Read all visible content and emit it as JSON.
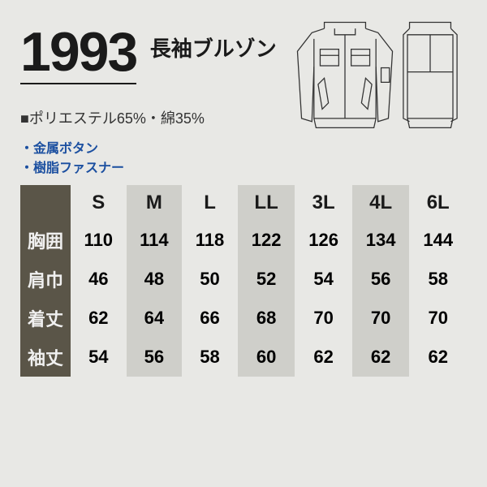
{
  "product": {
    "number": "1993",
    "title": "長袖ブルゾン",
    "material": "■ポリエステル65%・綿35%",
    "features": [
      "金属ボタン",
      "樹脂ファスナー"
    ]
  },
  "colors": {
    "background": "#e8e8e5",
    "text": "#1a1a1a",
    "feature_text": "#1b4fa0",
    "row_label_bg": "#5a5548",
    "row_label_text": "#f0f0f0",
    "shade_bg": "#cfcfca"
  },
  "sizeTable": {
    "sizes": [
      "S",
      "M",
      "L",
      "LL",
      "3L",
      "4L",
      "6L"
    ],
    "shaded_columns": [
      1,
      3,
      5
    ],
    "rows": [
      {
        "label": "胸囲",
        "values": [
          110,
          114,
          118,
          122,
          126,
          134,
          144
        ]
      },
      {
        "label": "肩巾",
        "values": [
          46,
          48,
          50,
          52,
          54,
          56,
          58
        ]
      },
      {
        "label": "着丈",
        "values": [
          62,
          64,
          66,
          68,
          70,
          70,
          70
        ]
      },
      {
        "label": "袖丈",
        "values": [
          54,
          56,
          58,
          60,
          62,
          62,
          62
        ]
      }
    ]
  }
}
